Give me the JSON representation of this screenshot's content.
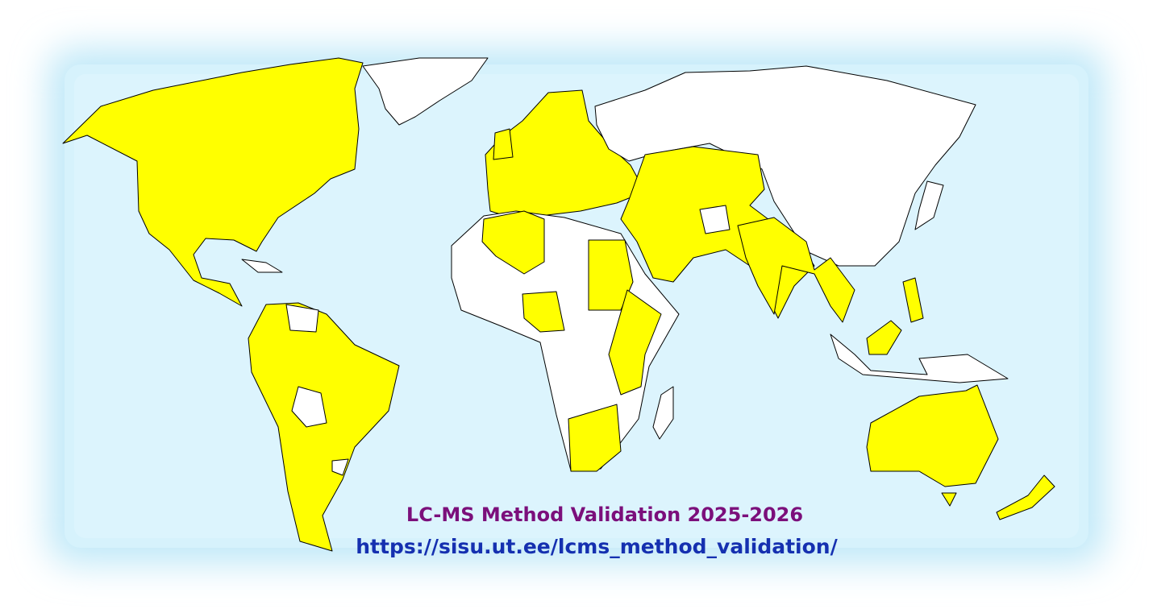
{
  "title": "LC-MS Method Validation  2025-2026",
  "url": "https://sisu.ut.ee/lcms_method_validation/"
}
